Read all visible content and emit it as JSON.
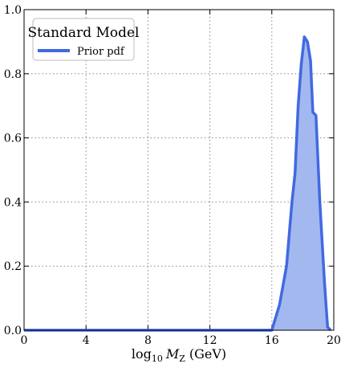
{
  "chart_data": {
    "type": "area",
    "legend_title": "Standard Model",
    "legend_loc": "upper left",
    "xlabel": {
      "base": "log",
      "base_sub": "10",
      "var": "M",
      "var_sub": "Z",
      "unit": "(GeV)"
    },
    "x": [
      0,
      15.5,
      16.0,
      16.5,
      16.95,
      17.3,
      17.5,
      17.7,
      17.9,
      18.1,
      18.3,
      18.5,
      18.65,
      18.85,
      19.1,
      19.4,
      19.6,
      19.8
    ],
    "series": [
      {
        "name": "Prior pdf",
        "color": "#4169e1",
        "fill": "#a3b8ee",
        "values": [
          0,
          0,
          0,
          0.08,
          0.2,
          0.4,
          0.49,
          0.7,
          0.83,
          0.915,
          0.9,
          0.84,
          0.68,
          0.67,
          0.4,
          0.15,
          0.01,
          0
        ]
      }
    ],
    "xlim": [
      0,
      20
    ],
    "xticks": [
      0,
      4,
      8,
      12,
      16,
      20
    ],
    "ylim": [
      0,
      1.0
    ],
    "yticks": [
      {
        "value": 0,
        "label": "0.0"
      },
      {
        "value": 0.2,
        "label": "0.2"
      },
      {
        "value": 0.4,
        "label": "0.4"
      },
      {
        "value": 0.6,
        "label": "0.6"
      },
      {
        "value": 0.8,
        "label": "0.8"
      },
      {
        "value": 1.0,
        "label": "1.0"
      }
    ],
    "grid": true
  }
}
